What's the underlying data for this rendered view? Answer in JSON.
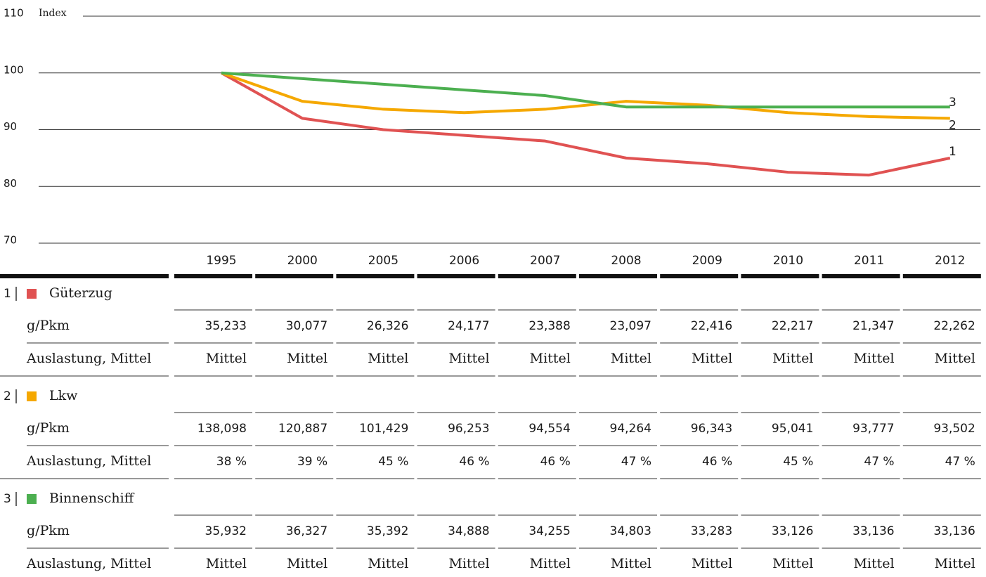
{
  "chart_data": {
    "type": "line",
    "ylabel": "Index",
    "categories": [
      "1995",
      "2000",
      "2005",
      "2006",
      "2007",
      "2008",
      "2009",
      "2010",
      "2011",
      "2012"
    ],
    "series": [
      {
        "name": "1",
        "color": "#e05252",
        "values": [
          100,
          92,
          90,
          89,
          88,
          85,
          84,
          82.5,
          82,
          85
        ]
      },
      {
        "name": "2",
        "color": "#f5a800",
        "values": [
          100,
          95,
          93.6,
          93,
          93.6,
          95,
          94.3,
          93,
          92.3,
          92
        ]
      },
      {
        "name": "3",
        "color": "#4caf50",
        "values": [
          100,
          99,
          98,
          97,
          96,
          94,
          94,
          94,
          94,
          94
        ]
      }
    ],
    "ylim": [
      70,
      110
    ],
    "yticks": [
      70,
      80,
      90,
      100,
      110
    ],
    "grid": true
  },
  "table": {
    "groups": [
      {
        "name": "Güterzug",
        "rows": [
          {
            "label": "g/Pkm",
            "values": [
              "35,233",
              "30,077",
              "26,326",
              "24,177",
              "23,388",
              "23,097",
              "22,416",
              "22,217",
              "21,347",
              "22,262"
            ]
          },
          {
            "label": "Auslastung, Mittel",
            "values": [
              "Mittel",
              "Mittel",
              "Mittel",
              "Mittel",
              "Mittel",
              "Mittel",
              "Mittel",
              "Mittel",
              "Mittel",
              "Mittel"
            ]
          }
        ]
      },
      {
        "name": "Lkw",
        "rows": [
          {
            "label": "g/Pkm",
            "values": [
              "138,098",
              "120,887",
              "101,429",
              "96,253",
              "94,554",
              "94,264",
              "96,343",
              "95,041",
              "93,777",
              "93,502"
            ]
          },
          {
            "label": "Auslastung, Mittel",
            "values": [
              "38 %",
              "39 %",
              "45 %",
              "46 %",
              "46 %",
              "47 %",
              "46 %",
              "45 %",
              "47 %",
              "47 %"
            ]
          }
        ]
      },
      {
        "name": "Binnenschiff",
        "rows": [
          {
            "label": "g/Pkm",
            "values": [
              "35,932",
              "36,327",
              "35,392",
              "34,888",
              "34,255",
              "34,803",
              "33,283",
              "33,126",
              "33,136",
              "33,136"
            ]
          },
          {
            "label": "Auslastung, Mittel",
            "values": [
              "Mittel",
              "Mittel",
              "Mittel",
              "Mittel",
              "Mittel",
              "Mittel",
              "Mittel",
              "Mittel",
              "Mittel",
              "Mittel"
            ]
          }
        ]
      }
    ]
  }
}
